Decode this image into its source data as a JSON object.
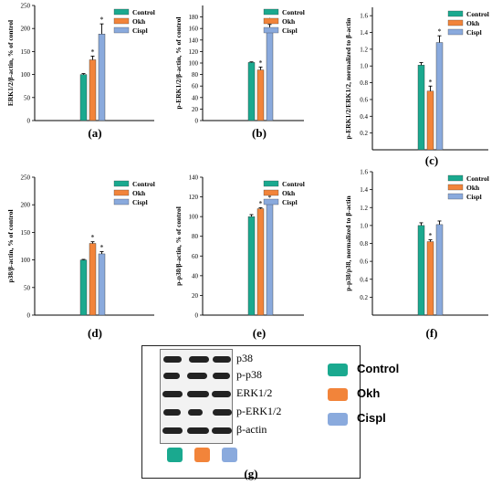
{
  "colors": {
    "Control": "#1aa98f",
    "Okh": "#f2843a",
    "Cispl": "#8aaadd"
  },
  "series_names": [
    "Control",
    "Okh",
    "Cispl"
  ],
  "chart_data": [
    {
      "panel": "(a)",
      "type": "bar",
      "ylabel": "ERK1/2/β-actin, % of control",
      "ylim": [
        0,
        250
      ],
      "yticks": [
        0,
        50,
        100,
        150,
        200,
        250
      ],
      "tick_format": "0",
      "categories": [
        "Control",
        "Okh",
        "Cispl"
      ],
      "values": [
        100,
        132,
        188
      ],
      "errors": [
        2,
        8,
        22
      ],
      "significance": [
        "",
        "*",
        "*"
      ],
      "legend_position": "top-right"
    },
    {
      "panel": "(b)",
      "type": "bar",
      "ylabel": "p-ERK1/2/β-actin, % of control",
      "ylim": [
        0,
        200
      ],
      "yticks": [
        0,
        20,
        40,
        60,
        80,
        100,
        120,
        140,
        160,
        180
      ],
      "tick_format": "0",
      "categories": [
        "Control",
        "Okh",
        "Cispl"
      ],
      "values": [
        101,
        88,
        160
      ],
      "errors": [
        1,
        5,
        7
      ],
      "significance": [
        "",
        "*",
        "*"
      ],
      "legend_position": "top-right"
    },
    {
      "panel": "(c)",
      "type": "bar",
      "ylabel": "p-ERK1/2/ERK1/2, normalized to β-actin",
      "ylim": [
        0,
        1.7
      ],
      "yticks": [
        0.2,
        0.4,
        0.6,
        0.8,
        1.0,
        1.2,
        1.4,
        1.6
      ],
      "tick_format": "0.0",
      "categories": [
        "Control",
        "Okh",
        "Cispl"
      ],
      "values": [
        1.01,
        0.7,
        1.28
      ],
      "errors": [
        0.03,
        0.06,
        0.08
      ],
      "significance": [
        "",
        "*",
        "*"
      ],
      "legend_position": "top-right"
    },
    {
      "panel": "(d)",
      "type": "bar",
      "ylabel": "p38/β-actin, % of control",
      "ylim": [
        0,
        250
      ],
      "yticks": [
        0,
        50,
        100,
        150,
        200,
        250
      ],
      "tick_format": "0",
      "categories": [
        "Control",
        "Okh",
        "Cispl"
      ],
      "values": [
        100,
        130,
        111
      ],
      "errors": [
        1,
        3,
        4
      ],
      "significance": [
        "",
        "*",
        "*"
      ],
      "legend_position": "top-right"
    },
    {
      "panel": "(e)",
      "type": "bar",
      "ylabel": "p-p38/β-actin, % of control",
      "ylim": [
        0,
        140
      ],
      "yticks": [
        0,
        20,
        40,
        60,
        80,
        100,
        120,
        140
      ],
      "tick_format": "0",
      "categories": [
        "Control",
        "Okh",
        "Cispl"
      ],
      "values": [
        100,
        108,
        113
      ],
      "errors": [
        2,
        1,
        2
      ],
      "significance": [
        "",
        "*",
        "*"
      ],
      "legend_position": "top-right"
    },
    {
      "panel": "(f)",
      "type": "bar",
      "ylabel": "p-p38/p38, normalized to β-actin",
      "ylim": [
        0,
        1.6
      ],
      "yticks": [
        0.2,
        0.4,
        0.6,
        0.8,
        1.0,
        1.2,
        1.4,
        1.6
      ],
      "tick_format": "0.0",
      "categories": [
        "Control",
        "Okh",
        "Cispl"
      ],
      "values": [
        1.0,
        0.82,
        1.01
      ],
      "errors": [
        0.03,
        0.02,
        0.04
      ],
      "significance": [
        "",
        "*",
        ""
      ],
      "legend_position": "top-right"
    }
  ],
  "blot": {
    "protein_labels": [
      "p38",
      "p-p38",
      "ERK1/2",
      "p-ERK1/2",
      "β-actin"
    ],
    "legend": [
      "Control",
      "Okh",
      "Cispl"
    ],
    "panel_label": "(g)"
  }
}
